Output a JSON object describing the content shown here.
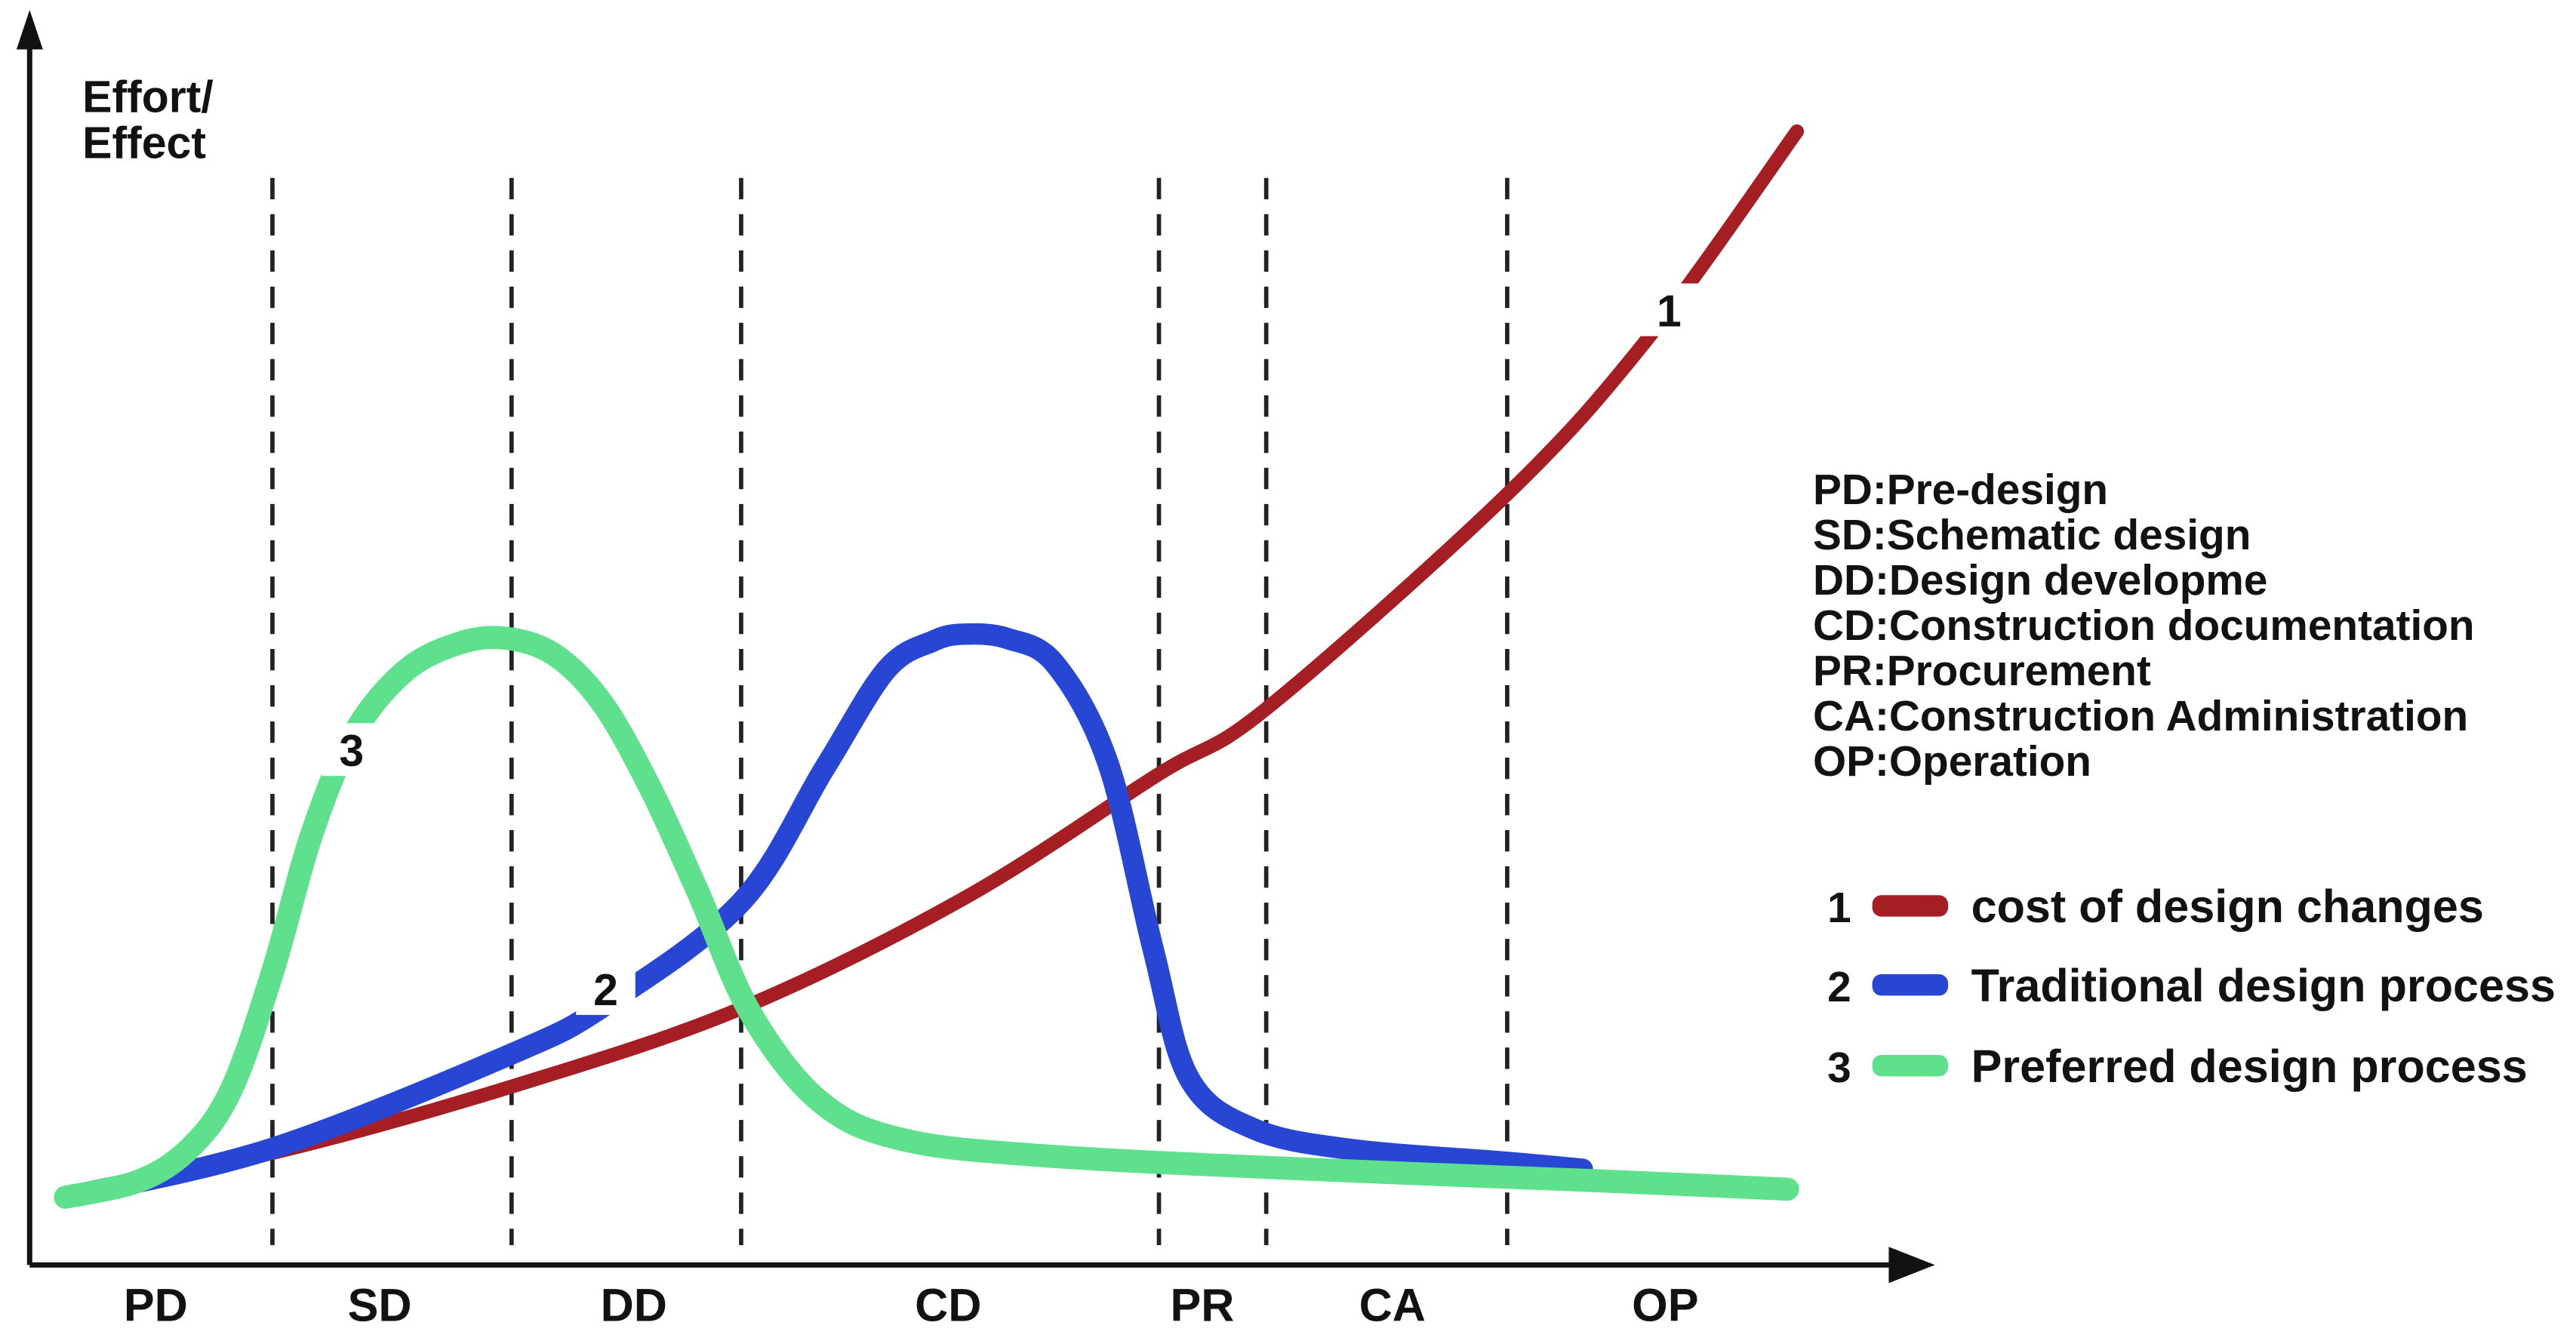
{
  "colors": {
    "cost_red": "#a51e24",
    "traditional_blue": "#2746d3",
    "preferred_green": "#5fe08d",
    "axis_black": "#121212",
    "background": "#ffffff"
  },
  "chart_data": {
    "type": "line",
    "title": "",
    "y_axis_label": [
      "Effort/",
      "Effect"
    ],
    "x_phases": [
      {
        "code": "PD",
        "center": 0.067
      },
      {
        "code": "SD",
        "center": 0.186
      },
      {
        "code": "DD",
        "center": 0.321
      },
      {
        "code": "CD",
        "center": 0.488
      },
      {
        "code": "PR",
        "center": 0.623
      },
      {
        "code": "CA",
        "center": 0.724
      },
      {
        "code": "OP",
        "center": 0.869
      }
    ],
    "phase_boundaries": [
      0.129,
      0.256,
      0.378,
      0.6,
      0.657,
      0.785
    ],
    "series": [
      {
        "num": "1",
        "name": "cost of design changes",
        "color": "#a51e24",
        "width": 8.5,
        "curve_label_pos": [
          0.871,
          0.819
        ],
        "points": [
          [
            0.019,
            0.061
          ],
          [
            0.129,
            0.096
          ],
          [
            0.256,
            0.153
          ],
          [
            0.378,
            0.22
          ],
          [
            0.497,
            0.315
          ],
          [
            0.6,
            0.421
          ],
          [
            0.657,
            0.477
          ],
          [
            0.785,
            0.661
          ],
          [
            0.86,
            0.795
          ],
          [
            0.939,
            0.972
          ]
        ]
      },
      {
        "num": "2",
        "name": "Traditional design process",
        "color": "#2746d3",
        "width": 13,
        "curve_label_pos": [
          0.306,
          0.237
        ],
        "points": [
          [
            0.019,
            0.058
          ],
          [
            0.129,
            0.1
          ],
          [
            0.256,
            0.181
          ],
          [
            0.306,
            0.223
          ],
          [
            0.378,
            0.311
          ],
          [
            0.422,
            0.425
          ],
          [
            0.455,
            0.51
          ],
          [
            0.48,
            0.535
          ],
          [
            0.497,
            0.541
          ],
          [
            0.52,
            0.537
          ],
          [
            0.545,
            0.515
          ],
          [
            0.573,
            0.43
          ],
          [
            0.597,
            0.27
          ],
          [
            0.616,
            0.16
          ],
          [
            0.65,
            0.117
          ],
          [
            0.702,
            0.099
          ],
          [
            0.785,
            0.088
          ],
          [
            0.825,
            0.082
          ]
        ]
      },
      {
        "num": "3",
        "name": "Preferred design process",
        "color": "#5fe08d",
        "width": 14,
        "curve_label_pos": [
          0.171,
          0.442
        ],
        "points": [
          [
            0.019,
            0.058
          ],
          [
            0.058,
            0.072
          ],
          [
            0.085,
            0.1
          ],
          [
            0.107,
            0.15
          ],
          [
            0.129,
            0.251
          ],
          [
            0.15,
            0.37
          ],
          [
            0.172,
            0.455
          ],
          [
            0.2,
            0.51
          ],
          [
            0.23,
            0.534
          ],
          [
            0.255,
            0.537
          ],
          [
            0.28,
            0.522
          ],
          [
            0.305,
            0.48
          ],
          [
            0.33,
            0.408
          ],
          [
            0.355,
            0.32
          ],
          [
            0.383,
            0.216
          ],
          [
            0.42,
            0.14
          ],
          [
            0.465,
            0.107
          ],
          [
            0.545,
            0.093
          ],
          [
            0.68,
            0.082
          ],
          [
            0.82,
            0.073
          ],
          [
            0.934,
            0.065
          ]
        ]
      }
    ],
    "legend_entries": [
      {
        "num": "1",
        "label": "cost of design changes",
        "color": "#a51e24"
      },
      {
        "num": "2",
        "label": "Traditional design process",
        "color": "#2746d3"
      },
      {
        "num": "3",
        "label": "Preferred design process",
        "color": "#5fe08d"
      }
    ],
    "abbreviations": [
      "PD:Pre-design",
      "SD:Schematic design",
      "DD:Design developme",
      "CD:Construction documentation",
      "PR:Procurement",
      "CA:Construction Administration",
      "OP:Operation"
    ]
  }
}
